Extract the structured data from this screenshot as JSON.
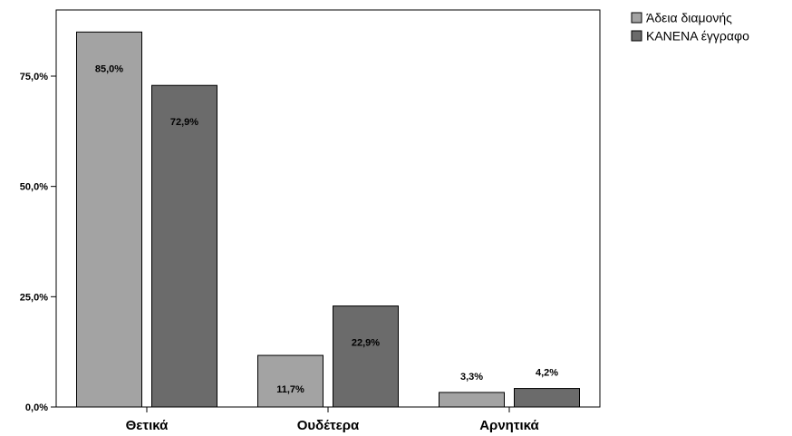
{
  "chart_data": {
    "type": "bar",
    "title": "",
    "xlabel": "",
    "ylabel": "",
    "categories": [
      "Θετικά",
      "Ουδέτερα",
      "Αρνητικά"
    ],
    "series": [
      {
        "name": "Άδεια διαμονής",
        "color": "#a3a3a3",
        "values": [
          85.0,
          11.7,
          3.3
        ],
        "labels": [
          "85,0%",
          "11,7%",
          "3,3%"
        ]
      },
      {
        "name": "ΚΑΝΕΝΑ έγγραφο",
        "color": "#6b6b6b",
        "values": [
          72.9,
          22.9,
          4.2
        ],
        "labels": [
          "72,9%",
          "22,9%",
          "4,2%"
        ]
      }
    ],
    "ylim": [
      0,
      90
    ],
    "yticks": [
      0,
      25,
      50,
      75
    ],
    "ytick_labels": [
      "0,0%",
      "25,0%",
      "50,0%",
      "75,0%"
    ],
    "grid": false,
    "legend_position": "top-right outside plot"
  }
}
